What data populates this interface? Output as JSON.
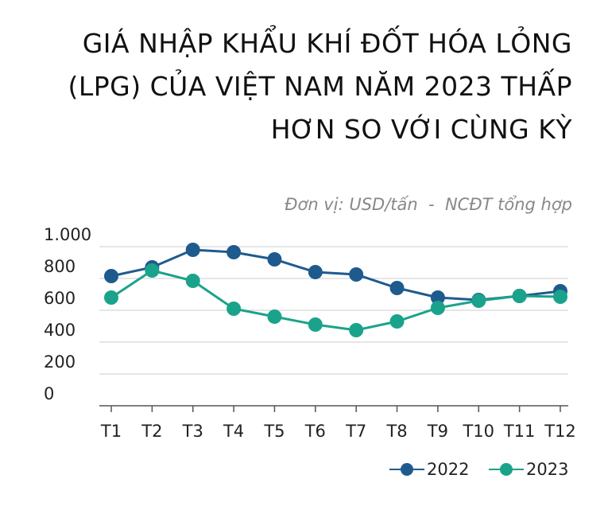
{
  "chart_data": {
    "type": "line",
    "title": "GIÁ NHẬP KHẨU KHÍ ĐỐT HÓA LỎNG (LPG) CỦA VIỆT NAM NĂM 2023 THẤP HƠN SO VỚI CÙNG KỲ",
    "subtitle": "Đơn vị: USD/tấn  -  NCĐT tổng hợp",
    "categories": [
      "T1",
      "T2",
      "T3",
      "T4",
      "T5",
      "T6",
      "T7",
      "T8",
      "T9",
      "T10",
      "T11",
      "T12"
    ],
    "series": [
      {
        "name": "2022",
        "color": "#1f5a8e",
        "values": [
          815,
          870,
          980,
          965,
          920,
          840,
          825,
          740,
          680,
          665,
          690,
          720
        ]
      },
      {
        "name": "2023",
        "color": "#1aa38a",
        "values": [
          680,
          850,
          785,
          610,
          560,
          510,
          475,
          530,
          615,
          660,
          690,
          685
        ]
      }
    ],
    "ylim": [
      0,
      1000
    ],
    "yticks": [
      0,
      200,
      400,
      600,
      800,
      {
        "value": 1000,
        "label": "1.000"
      }
    ],
    "grid": true
  }
}
